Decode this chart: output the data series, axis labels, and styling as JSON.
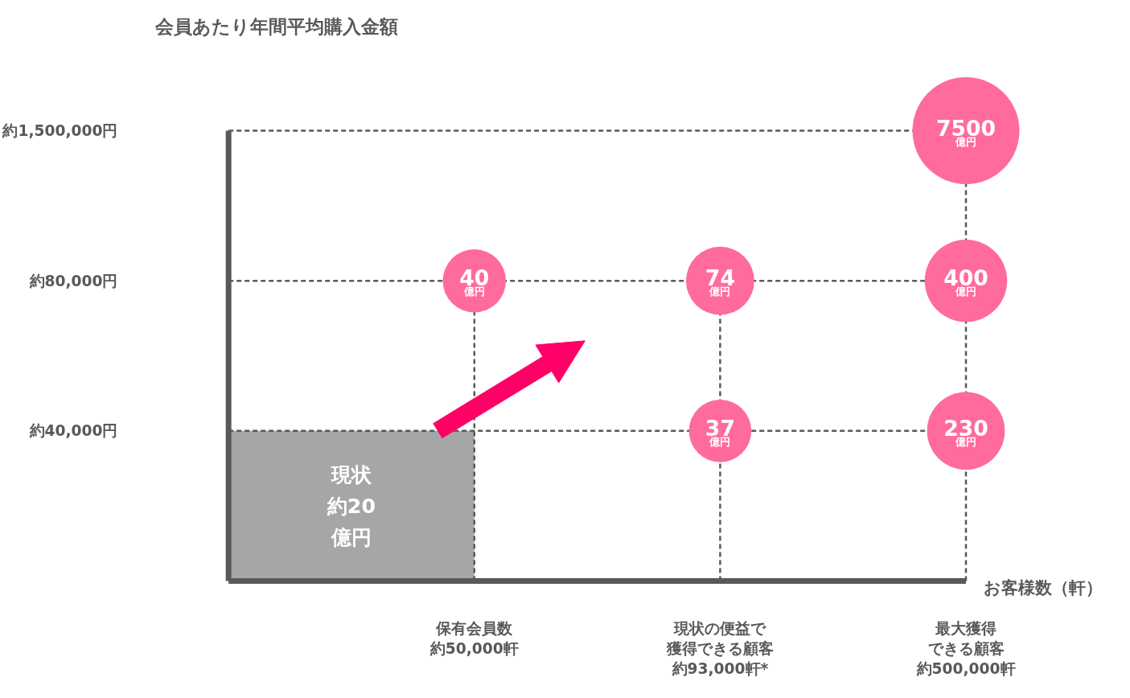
{
  "chart_data": {
    "type": "other",
    "ylabel": "会員あたり年間平均購入金額",
    "xlabel": "お客様数（軒）",
    "categories": [
      "保有会員数約50,000軒",
      "現状の便益で獲得できる顧客約93,000軒*",
      "最大獲得できる顧客約500,000軒"
    ],
    "y_categories": [
      "約1,500,000円",
      "約80,000円",
      "約40,000円"
    ],
    "series": [
      {
        "values": [
          null,
          null,
          7500
        ]
      },
      {
        "values": [
          40,
          74,
          400
        ]
      },
      {
        "values": [
          null,
          37,
          230
        ]
      }
    ],
    "data_labels": true,
    "color": "#ff6b9b",
    "annotations": [
      "現状約20億円",
      {
        "text": "億円",
        "x": "最大獲得できる顧客約500,000軒",
        "y": "約1,500,000円"
      },
      {
        "text": "億円",
        "x": "保有会員数約50,000軒",
        "y": "約80,000円"
      },
      {
        "text": "億円",
        "x": "現状の便益で獲得できる顧客約93,000軒*",
        "y": "約80,000円"
      },
      {
        "text": "億円",
        "x": "最大獲得できる顧客約500,000軒",
        "y": "約80,000円"
      },
      {
        "text": "億円",
        "x": "現状の便益で獲得できる顧客約93,000軒*",
        "y": "約40,000円"
      },
      {
        "text": "億円",
        "x": "最大獲得できる顧客約500,000軒",
        "y": "約40,000円"
      }
    ]
  }
}
